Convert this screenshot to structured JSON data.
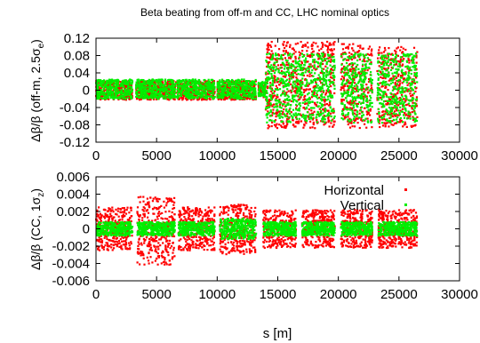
{
  "colors": {
    "horizontal": "#ff0000",
    "vertical": "#00ee00",
    "frame": "#000000"
  },
  "chart_data": [
    {
      "type": "scatter",
      "title": "Beta beating from off-m and CC, LHC nominal optics",
      "ylabel_parts": [
        "Δβ/β (off-m, 2.5σ",
        "e",
        ")"
      ],
      "xlim": [
        0,
        30000
      ],
      "ylim": [
        -0.12,
        0.12
      ],
      "x_ticks": [
        "0",
        "5000",
        "10000",
        "15000",
        "20000",
        "25000",
        "30000"
      ],
      "y_ticks": [
        "-0.12",
        "-0.08",
        "-0.04",
        "0",
        "0.04",
        "0.08",
        "0.12"
      ],
      "grid": false,
      "series": [
        {
          "key": "horizontal",
          "envelope": [
            {
              "x": [
                0,
                3000
              ],
              "y": [
                -0.022,
                0.022
              ]
            },
            {
              "x": [
                3300,
                6600
              ],
              "y": [
                -0.022,
                0.022
              ]
            },
            {
              "x": [
                6700,
                9800
              ],
              "y": [
                -0.022,
                0.022
              ]
            },
            {
              "x": [
                10000,
                13200
              ],
              "y": [
                -0.022,
                0.022
              ]
            },
            {
              "x": [
                13400,
                14000
              ],
              "y": [
                -0.016,
                0.016
              ]
            },
            {
              "x": [
                14000,
                19700
              ],
              "y": [
                -0.088,
                0.112
              ]
            },
            {
              "x": [
                20200,
                22800
              ],
              "y": [
                -0.088,
                0.108
              ]
            },
            {
              "x": [
                23200,
                26500
              ],
              "y": [
                -0.085,
                0.1
              ]
            }
          ]
        },
        {
          "key": "vertical",
          "envelope": [
            {
              "x": [
                0,
                3000
              ],
              "y": [
                -0.02,
                0.025
              ]
            },
            {
              "x": [
                3300,
                6600
              ],
              "y": [
                -0.02,
                0.025
              ]
            },
            {
              "x": [
                6700,
                9800
              ],
              "y": [
                -0.02,
                0.025
              ]
            },
            {
              "x": [
                10000,
                13200
              ],
              "y": [
                -0.02,
                0.025
              ]
            },
            {
              "x": [
                13400,
                14000
              ],
              "y": [
                -0.015,
                0.02
              ]
            },
            {
              "x": [
                14000,
                19700
              ],
              "y": [
                -0.075,
                0.085
              ]
            },
            {
              "x": [
                20200,
                22800
              ],
              "y": [
                -0.075,
                0.085
              ]
            },
            {
              "x": [
                23200,
                26500
              ],
              "y": [
                -0.075,
                0.085
              ]
            }
          ]
        }
      ]
    },
    {
      "type": "scatter",
      "ylabel_parts": [
        "Δβ/β (CC, 1σ",
        "z",
        ")"
      ],
      "xlabel": "s [m]",
      "xlim": [
        0,
        30000
      ],
      "ylim": [
        -0.006,
        0.006
      ],
      "x_ticks": [
        "0",
        "5000",
        "10000",
        "15000",
        "20000",
        "25000",
        "30000"
      ],
      "y_ticks": [
        "-0.006",
        "-0.004",
        "-0.002",
        "0",
        "0.002",
        "0.004",
        "0.006"
      ],
      "legend_position": "top-right",
      "grid": false,
      "series": [
        {
          "key": "horizontal",
          "name": "Horizontal",
          "envelope": [
            {
              "x": [
                0,
                3000
              ],
              "y": [
                -0.0025,
                0.0025
              ]
            },
            {
              "x": [
                3400,
                6500
              ],
              "y": [
                -0.0042,
                0.0037
              ]
            },
            {
              "x": [
                6800,
                9800
              ],
              "y": [
                -0.0025,
                0.0025
              ]
            },
            {
              "x": [
                10200,
                13200
              ],
              "y": [
                -0.003,
                0.0028
              ]
            },
            {
              "x": [
                13800,
                16500
              ],
              "y": [
                -0.0022,
                0.0022
              ]
            },
            {
              "x": [
                17000,
                19700
              ],
              "y": [
                -0.0022,
                0.0022
              ]
            },
            {
              "x": [
                20200,
                22800
              ],
              "y": [
                -0.0022,
                0.0022
              ]
            },
            {
              "x": [
                23300,
                26500
              ],
              "y": [
                -0.0022,
                0.0022
              ]
            }
          ]
        },
        {
          "key": "vertical",
          "name": "Vertical",
          "envelope": [
            {
              "x": [
                0,
                3000
              ],
              "y": [
                -0.0008,
                0.0008
              ]
            },
            {
              "x": [
                3400,
                6500
              ],
              "y": [
                -0.0008,
                0.0008
              ]
            },
            {
              "x": [
                6800,
                9800
              ],
              "y": [
                -0.0008,
                0.0008
              ]
            },
            {
              "x": [
                10200,
                13200
              ],
              "y": [
                -0.0012,
                0.0012
              ]
            },
            {
              "x": [
                13800,
                16500
              ],
              "y": [
                -0.0008,
                0.0008
              ]
            },
            {
              "x": [
                17000,
                19700
              ],
              "y": [
                -0.0008,
                0.0008
              ]
            },
            {
              "x": [
                20200,
                22800
              ],
              "y": [
                -0.0008,
                0.0008
              ]
            },
            {
              "x": [
                23300,
                26500
              ],
              "y": [
                -0.0008,
                0.0008
              ]
            }
          ]
        }
      ]
    }
  ]
}
